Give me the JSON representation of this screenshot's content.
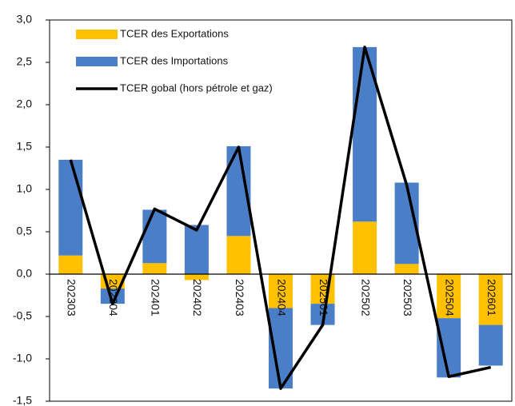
{
  "chart_data": {
    "type": "bar",
    "categories": [
      "202303",
      "202304",
      "202401",
      "202402",
      "202403",
      "202404",
      "202501",
      "202502",
      "202503",
      "202504",
      "202601"
    ],
    "series": [
      {
        "name": "TCER des Exportations",
        "type": "bar",
        "color": "#ffc000",
        "values": [
          0.22,
          -0.17,
          0.13,
          -0.07,
          0.45,
          -0.4,
          -0.35,
          0.62,
          0.12,
          -0.52,
          -0.6
        ]
      },
      {
        "name": "TCER des Importations",
        "type": "bar",
        "color": "#4a7ec6",
        "values": [
          1.13,
          -0.18,
          0.63,
          0.58,
          1.06,
          -0.95,
          -0.25,
          2.06,
          0.96,
          -0.7,
          -0.48
        ]
      },
      {
        "name": "TCER gobal (hors pétrole et gaz)",
        "type": "line",
        "color": "#000000",
        "values": [
          1.35,
          -0.35,
          0.77,
          0.52,
          1.5,
          -1.35,
          -0.6,
          2.68,
          1.05,
          -1.21,
          -1.1
        ]
      }
    ],
    "stacked": true,
    "ylim": [
      -1.5,
      3.0
    ],
    "yticks": [
      {
        "value": 3.0,
        "label": "3,0"
      },
      {
        "value": 2.5,
        "label": "2,5"
      },
      {
        "value": 2.0,
        "label": "2,0"
      },
      {
        "value": 1.5,
        "label": "1,5"
      },
      {
        "value": 1.0,
        "label": "1,0"
      },
      {
        "value": 0.5,
        "label": "0,5"
      },
      {
        "value": 0.0,
        "label": "0,0"
      },
      {
        "value": -0.5,
        "label": "-0,5"
      },
      {
        "value": -1.0,
        "label": "-1,0"
      },
      {
        "value": -1.5,
        "label": "-1,5"
      }
    ],
    "legend": "upper left"
  }
}
